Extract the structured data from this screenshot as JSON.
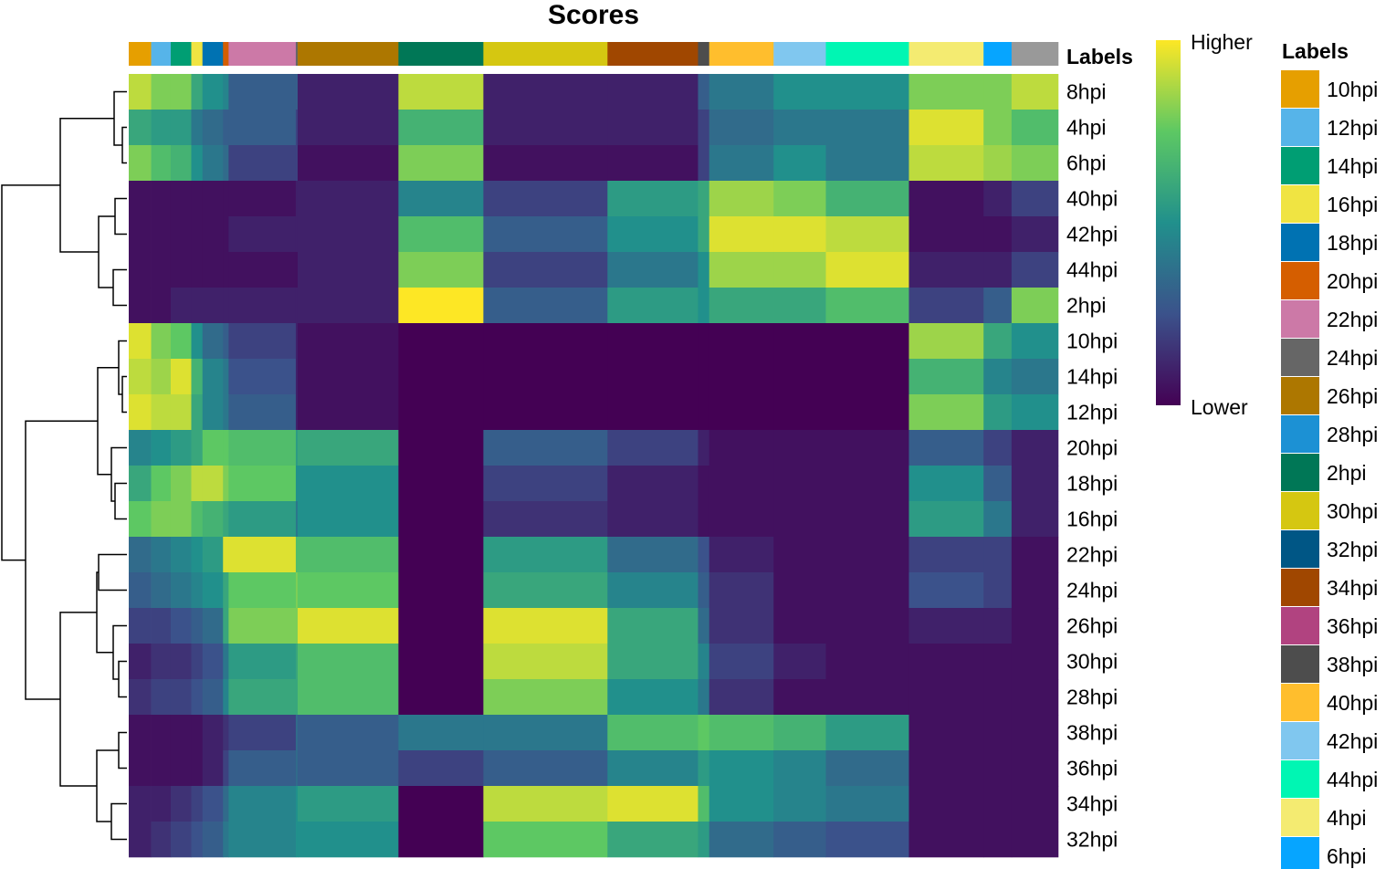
{
  "chart_data": {
    "type": "heatmap",
    "title": "Scores",
    "rows": [
      "8hpi",
      "4hpi",
      "6hpi",
      "40hpi",
      "42hpi",
      "44hpi",
      "2hpi",
      "10hpi",
      "14hpi",
      "12hpi",
      "20hpi",
      "18hpi",
      "16hpi",
      "22hpi",
      "24hpi",
      "26hpi",
      "30hpi",
      "28hpi",
      "38hpi",
      "36hpi",
      "34hpi",
      "32hpi"
    ],
    "column_groups": [
      "10hpi",
      "12hpi",
      "14hpi",
      "16hpi",
      "18hpi",
      "20hpi",
      "22hpi",
      "24hpi",
      "26hpi",
      "2hpi",
      "30hpi",
      "34hpi",
      "38hpi",
      "40hpi",
      "42hpi",
      "44hpi",
      "4hpi",
      "6hpi",
      "8hpi"
    ],
    "column_group_fraction": [
      0.024,
      0.021,
      0.022,
      0.012,
      0.022,
      0.006,
      0.072,
      0.002,
      0.108,
      0.091,
      0.133,
      0.097,
      0.012,
      0.069,
      0.056,
      0.089,
      0.08,
      0.03,
      0.05
    ],
    "values": [
      [
        0.9,
        0.8,
        0.8,
        0.6,
        0.5,
        0.45,
        0.3,
        0.3,
        0.1,
        0.9,
        0.1,
        0.1,
        0.3,
        0.4,
        0.5,
        0.5,
        0.8,
        0.8,
        0.9
      ],
      [
        0.6,
        0.55,
        0.55,
        0.4,
        0.35,
        0.3,
        0.3,
        0.2,
        0.1,
        0.65,
        0.1,
        0.1,
        0.2,
        0.35,
        0.4,
        0.4,
        0.95,
        0.8,
        0.7
      ],
      [
        0.8,
        0.7,
        0.65,
        0.5,
        0.4,
        0.35,
        0.2,
        0.2,
        0.05,
        0.8,
        0.05,
        0.05,
        0.2,
        0.4,
        0.5,
        0.4,
        0.9,
        0.85,
        0.8
      ],
      [
        0.05,
        0.05,
        0.05,
        0.05,
        0.05,
        0.05,
        0.05,
        0.1,
        0.1,
        0.45,
        0.2,
        0.55,
        0.6,
        0.85,
        0.8,
        0.65,
        0.05,
        0.1,
        0.2
      ],
      [
        0.05,
        0.05,
        0.05,
        0.05,
        0.05,
        0.05,
        0.1,
        0.1,
        0.1,
        0.7,
        0.3,
        0.5,
        0.6,
        0.95,
        0.95,
        0.9,
        0.05,
        0.05,
        0.1
      ],
      [
        0.05,
        0.05,
        0.05,
        0.05,
        0.05,
        0.05,
        0.05,
        0.05,
        0.1,
        0.8,
        0.2,
        0.4,
        0.5,
        0.85,
        0.85,
        0.95,
        0.1,
        0.1,
        0.2
      ],
      [
        0.05,
        0.05,
        0.1,
        0.1,
        0.1,
        0.1,
        0.1,
        0.1,
        0.1,
        1.0,
        0.3,
        0.55,
        0.5,
        0.6,
        0.6,
        0.7,
        0.2,
        0.3,
        0.8
      ],
      [
        0.95,
        0.8,
        0.75,
        0.5,
        0.35,
        0.3,
        0.2,
        0.1,
        0.05,
        0.0,
        0.0,
        0.0,
        0.0,
        0.0,
        0.0,
        0.0,
        0.85,
        0.6,
        0.5
      ],
      [
        0.9,
        0.85,
        0.95,
        0.65,
        0.45,
        0.4,
        0.25,
        0.1,
        0.05,
        0.0,
        0.0,
        0.0,
        0.0,
        0.0,
        0.0,
        0.0,
        0.65,
        0.45,
        0.4
      ],
      [
        0.95,
        0.9,
        0.9,
        0.6,
        0.45,
        0.4,
        0.3,
        0.1,
        0.05,
        0.0,
        0.0,
        0.0,
        0.0,
        0.0,
        0.0,
        0.0,
        0.8,
        0.55,
        0.5
      ],
      [
        0.45,
        0.5,
        0.55,
        0.6,
        0.75,
        0.75,
        0.7,
        0.55,
        0.6,
        0.0,
        0.3,
        0.2,
        0.1,
        0.05,
        0.05,
        0.05,
        0.3,
        0.2,
        0.1
      ],
      [
        0.6,
        0.75,
        0.8,
        0.9,
        0.9,
        0.8,
        0.75,
        0.5,
        0.5,
        0.0,
        0.2,
        0.1,
        0.05,
        0.05,
        0.05,
        0.05,
        0.5,
        0.3,
        0.1
      ],
      [
        0.75,
        0.8,
        0.8,
        0.7,
        0.65,
        0.6,
        0.55,
        0.4,
        0.5,
        0.0,
        0.15,
        0.1,
        0.05,
        0.05,
        0.05,
        0.05,
        0.55,
        0.4,
        0.1
      ],
      [
        0.35,
        0.4,
        0.45,
        0.5,
        0.55,
        0.95,
        0.95,
        0.7,
        0.7,
        0.0,
        0.55,
        0.35,
        0.25,
        0.1,
        0.05,
        0.05,
        0.2,
        0.2,
        0.05
      ],
      [
        0.3,
        0.35,
        0.4,
        0.45,
        0.5,
        0.6,
        0.75,
        0.8,
        0.75,
        0.0,
        0.6,
        0.45,
        0.3,
        0.15,
        0.05,
        0.05,
        0.25,
        0.2,
        0.05
      ],
      [
        0.2,
        0.2,
        0.25,
        0.3,
        0.35,
        0.6,
        0.8,
        0.8,
        0.95,
        0.0,
        0.95,
        0.6,
        0.35,
        0.15,
        0.05,
        0.05,
        0.1,
        0.1,
        0.05
      ],
      [
        0.1,
        0.15,
        0.15,
        0.2,
        0.25,
        0.4,
        0.55,
        0.6,
        0.7,
        0.0,
        0.9,
        0.6,
        0.45,
        0.2,
        0.1,
        0.05,
        0.05,
        0.05,
        0.05
      ],
      [
        0.15,
        0.2,
        0.2,
        0.25,
        0.3,
        0.45,
        0.6,
        0.6,
        0.7,
        0.0,
        0.8,
        0.5,
        0.4,
        0.15,
        0.05,
        0.05,
        0.05,
        0.05,
        0.05
      ],
      [
        0.05,
        0.05,
        0.05,
        0.05,
        0.1,
        0.15,
        0.2,
        0.35,
        0.3,
        0.4,
        0.4,
        0.7,
        0.75,
        0.7,
        0.65,
        0.55,
        0.05,
        0.05,
        0.05
      ],
      [
        0.05,
        0.05,
        0.05,
        0.05,
        0.1,
        0.2,
        0.3,
        0.35,
        0.3,
        0.2,
        0.3,
        0.45,
        0.55,
        0.5,
        0.45,
        0.35,
        0.05,
        0.05,
        0.05
      ],
      [
        0.1,
        0.1,
        0.15,
        0.2,
        0.25,
        0.35,
        0.45,
        0.5,
        0.55,
        0.0,
        0.9,
        0.95,
        0.7,
        0.5,
        0.45,
        0.4,
        0.05,
        0.05,
        0.05
      ],
      [
        0.1,
        0.15,
        0.2,
        0.25,
        0.3,
        0.4,
        0.45,
        0.5,
        0.5,
        0.0,
        0.75,
        0.6,
        0.55,
        0.35,
        0.3,
        0.25,
        0.05,
        0.05,
        0.05
      ]
    ],
    "scale": {
      "high": "Higher",
      "low": "Lower",
      "colors": [
        "#440154",
        "#3b528b",
        "#21908c",
        "#5dc863",
        "#fde725"
      ]
    },
    "annotation_title": "Labels",
    "legend": {
      "title": "Labels",
      "items": [
        {
          "label": "10hpi",
          "color": "#E69F00"
        },
        {
          "label": "12hpi",
          "color": "#56B4E9"
        },
        {
          "label": "14hpi",
          "color": "#009E73"
        },
        {
          "label": "16hpi",
          "color": "#F0E442"
        },
        {
          "label": "18hpi",
          "color": "#0072B2"
        },
        {
          "label": "20hpi",
          "color": "#D55E00"
        },
        {
          "label": "22hpi",
          "color": "#CC79A7"
        },
        {
          "label": "24hpi",
          "color": "#666666"
        },
        {
          "label": "26hpi",
          "color": "#AD7700"
        },
        {
          "label": "28hpi",
          "color": "#1C91D4"
        },
        {
          "label": "2hpi",
          "color": "#007756"
        },
        {
          "label": "30hpi",
          "color": "#D5C711"
        },
        {
          "label": "32hpi",
          "color": "#005685"
        },
        {
          "label": "34hpi",
          "color": "#A04700"
        },
        {
          "label": "36hpi",
          "color": "#B14380"
        },
        {
          "label": "38hpi",
          "color": "#4D4D4D"
        },
        {
          "label": "40hpi",
          "color": "#FFBE2D"
        },
        {
          "label": "42hpi",
          "color": "#80C7EF"
        },
        {
          "label": "44hpi",
          "color": "#00F6B3"
        },
        {
          "label": "4hpi",
          "color": "#F4EB71"
        },
        {
          "label": "6hpi",
          "color": "#06A5FF"
        }
      ]
    },
    "dendrogram": "rows"
  }
}
